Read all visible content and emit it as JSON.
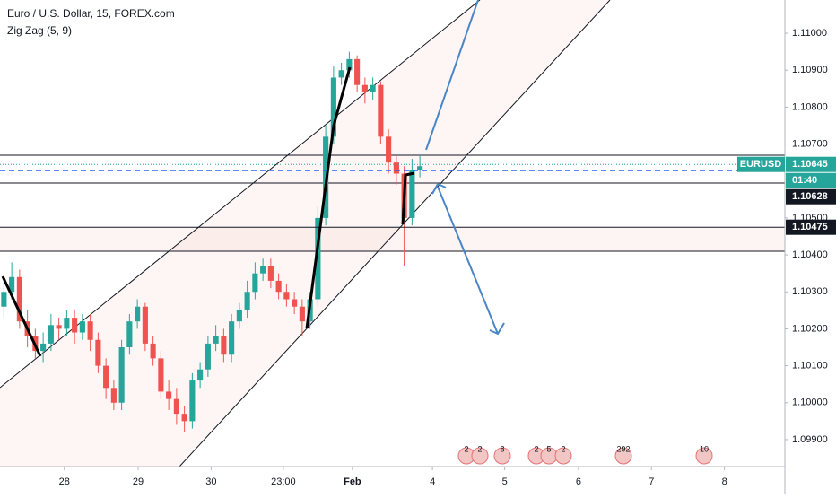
{
  "chart_data": {
    "type": "candlestick",
    "title": "Euro / U.S. Dollar, 15, FOREX.com",
    "indicator": "Zig Zag (5, 9)",
    "up_color": "#26a69a",
    "down_color": "#ef5350",
    "open": [
      1.1026,
      1.103,
      1.1034,
      1.1022,
      1.1018,
      1.1014,
      1.1016,
      1.1021,
      1.102,
      1.1023,
      1.1019,
      1.1022,
      1.1017,
      1.101,
      1.1004,
      1.1,
      1.1015,
      1.1022,
      1.1026,
      1.1016,
      1.1012,
      1.1003,
      1.1001,
      1.0997,
      1.0995,
      1.1006,
      1.1009,
      1.1016,
      1.1018,
      1.1013,
      1.1022,
      1.1025,
      1.103,
      1.1035,
      1.1037,
      1.1033,
      1.103,
      1.1028,
      1.1026,
      1.1022,
      1.1028,
      1.105,
      1.1072,
      1.1088,
      1.109,
      1.1093,
      1.1086,
      1.1084,
      1.1086,
      1.1072,
      1.1065,
      1.1062,
      1.105,
      1.1063
    ],
    "high": [
      1.1033,
      1.1038,
      1.1036,
      1.1025,
      1.102,
      1.1019,
      1.1024,
      1.1023,
      1.1025,
      1.1025,
      1.1024,
      1.1024,
      1.1019,
      1.1012,
      1.1006,
      1.1017,
      1.1024,
      1.1028,
      1.1027,
      1.1018,
      1.1014,
      1.1006,
      1.1004,
      1.0999,
      1.1008,
      1.1011,
      1.1018,
      1.1021,
      1.102,
      1.1024,
      1.1027,
      1.1033,
      1.1038,
      1.1039,
      1.1039,
      1.1035,
      1.1032,
      1.103,
      1.1028,
      1.103,
      1.1053,
      1.1075,
      1.1091,
      1.1092,
      1.1095,
      1.1094,
      1.1088,
      1.1088,
      1.1087,
      1.1074,
      1.1067,
      1.1064,
      1.1066,
      1.1067
    ],
    "low": [
      1.1023,
      1.1028,
      1.102,
      1.1015,
      1.1012,
      1.1011,
      1.1014,
      1.1017,
      1.1018,
      1.1016,
      1.1017,
      1.1014,
      1.1008,
      1.1001,
      1.0998,
      1.0998,
      1.1013,
      1.102,
      1.1014,
      1.101,
      1.1001,
      1.0998,
      1.0994,
      1.0992,
      1.0993,
      1.1004,
      1.1007,
      1.1014,
      1.1011,
      1.1011,
      1.102,
      1.1023,
      1.1028,
      1.1033,
      1.1031,
      1.1028,
      1.1026,
      1.1024,
      1.1018,
      1.102,
      1.1026,
      1.1048,
      1.107,
      1.1086,
      1.1088,
      1.1084,
      1.1081,
      1.1082,
      1.107,
      1.1062,
      1.1059,
      1.1037,
      1.1048,
      1.1061
    ],
    "close": [
      1.103,
      1.1034,
      1.1022,
      1.1018,
      1.1014,
      1.1016,
      1.1021,
      1.102,
      1.1023,
      1.1019,
      1.1022,
      1.1017,
      1.101,
      1.1004,
      1.1,
      1.1015,
      1.1022,
      1.1026,
      1.1016,
      1.1012,
      1.1003,
      1.1001,
      1.0997,
      1.0995,
      1.1006,
      1.1009,
      1.1016,
      1.1018,
      1.1013,
      1.1022,
      1.1025,
      1.103,
      1.1035,
      1.1037,
      1.1033,
      1.103,
      1.1028,
      1.1026,
      1.1022,
      1.1028,
      1.105,
      1.1072,
      1.1088,
      1.109,
      1.1093,
      1.1086,
      1.1084,
      1.1086,
      1.1072,
      1.1065,
      1.1062,
      1.105,
      1.1063,
      1.1064
    ],
    "xlim": [
      0,
      100
    ],
    "xticks": [
      {
        "value": 8.2,
        "label": "28"
      },
      {
        "value": 17.6,
        "label": "29"
      },
      {
        "value": 26.9,
        "label": "30"
      },
      {
        "value": 36.1,
        "label": "23:00"
      },
      {
        "value": 44.9,
        "label": "Feb"
      },
      {
        "value": 55.1,
        "label": "4"
      },
      {
        "value": 64.3,
        "label": "5"
      },
      {
        "value": 73.7,
        "label": "6"
      },
      {
        "value": 83,
        "label": "7"
      },
      {
        "value": 92.3,
        "label": "8"
      }
    ],
    "ylim": [
      1.09827,
      1.1109
    ],
    "yticks": [
      {
        "value": 1.11,
        "label": "1.11000"
      },
      {
        "value": 1.109,
        "label": "1.10900"
      },
      {
        "value": 1.108,
        "label": "1.10800"
      },
      {
        "value": 1.107,
        "label": "1.10700"
      },
      {
        "value": 1.105,
        "label": "1.10500"
      },
      {
        "value": 1.104,
        "label": "1.10400"
      },
      {
        "value": 1.103,
        "label": "1.10300"
      },
      {
        "value": 1.102,
        "label": "1.10200"
      },
      {
        "value": 1.101,
        "label": "1.10100"
      },
      {
        "value": 1.1,
        "label": "1.10000"
      },
      {
        "value": 1.099,
        "label": "1.09900"
      }
    ],
    "symbol_tag": "EURUSD",
    "last_price": 1.10645,
    "countdown": "01:40",
    "levels": [
      1.10628,
      1.10475
    ],
    "event_badges": [
      "2",
      "2",
      "8",
      "2",
      "5",
      "2",
      "292",
      "10"
    ]
  }
}
